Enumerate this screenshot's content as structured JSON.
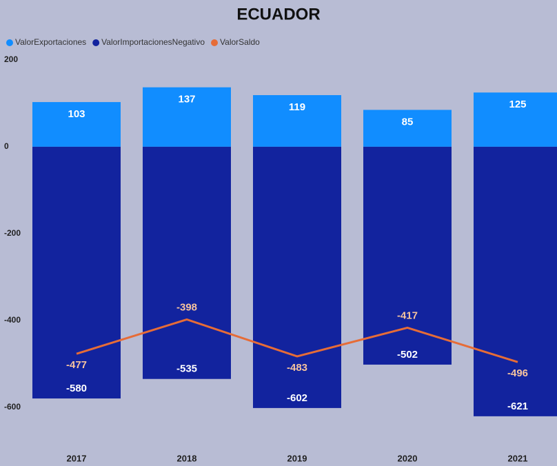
{
  "chart_data": {
    "type": "bar_line",
    "title": "ECUADOR",
    "categories": [
      "2017",
      "2018",
      "2019",
      "2020",
      "2021"
    ],
    "series": [
      {
        "name": "ValorExportaciones",
        "color": "#118dff",
        "values": [
          103,
          137,
          119,
          85,
          125
        ]
      },
      {
        "name": "ValorImportacionesNegativo",
        "color": "#12239e",
        "values": [
          -580,
          -535,
          -602,
          -502,
          -621
        ]
      },
      {
        "name": "ValorSaldo",
        "color": "#e66c37",
        "values": [
          -477,
          -398,
          -483,
          -417,
          -496
        ],
        "kind": "line"
      }
    ],
    "ylim": [
      -680,
      200
    ],
    "yticks": [
      200,
      0,
      -200,
      -400,
      -600
    ]
  }
}
